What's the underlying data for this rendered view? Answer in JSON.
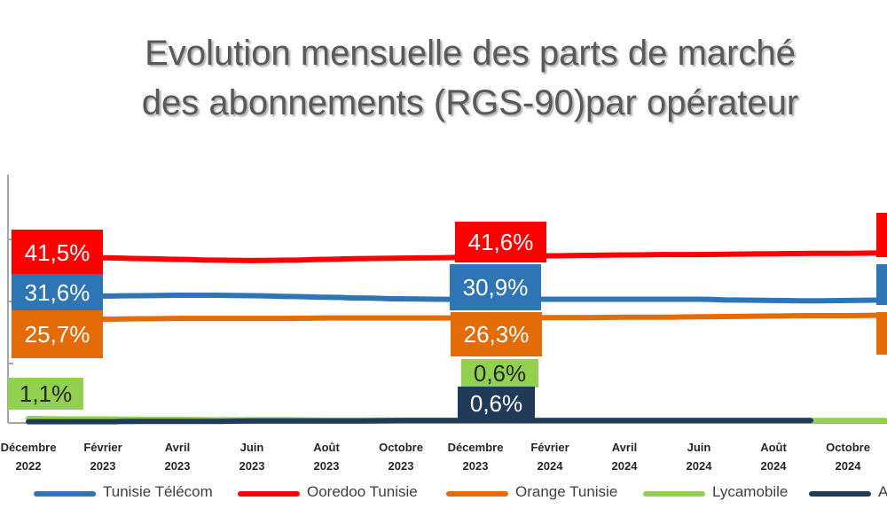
{
  "title": {
    "line1": "Evolution mensuelle des parts de marché",
    "line2": "des abonnements (RGS-90)par opérateur"
  },
  "chart_data": {
    "type": "line",
    "title": "Evolution mensuelle des parts de marché des abonnements (RGS-90)par opérateur",
    "x_tick_labels": [
      [
        "Décembre",
        "2022"
      ],
      [
        "Février",
        "2023"
      ],
      [
        "Avril",
        "2023"
      ],
      [
        "Juin",
        "2023"
      ],
      [
        "Août",
        "2023"
      ],
      [
        "Octobre",
        "2023"
      ],
      [
        "Décembre",
        "2023"
      ],
      [
        "Février",
        "2024"
      ],
      [
        "Avril",
        "2024"
      ],
      [
        "Juin",
        "2024"
      ],
      [
        "Août",
        "2024"
      ],
      [
        "Octobre",
        "2024"
      ]
    ],
    "x": [
      "2022-12",
      "2023-01",
      "2023-02",
      "2023-03",
      "2023-04",
      "2023-05",
      "2023-06",
      "2023-07",
      "2023-08",
      "2023-09",
      "2023-10",
      "2023-11",
      "2023-12",
      "2024-01",
      "2024-02",
      "2024-03",
      "2024-04",
      "2024-05",
      "2024-06",
      "2024-07",
      "2024-08",
      "2024-09",
      "2024-10",
      "2024-11"
    ],
    "ylim": [
      0,
      45
    ],
    "series": [
      {
        "name": "Tunisie Télécom",
        "color": "#2E75B6",
        "values": [
          31.6,
          31.7,
          31.8,
          31.9,
          32.0,
          32.0,
          31.9,
          31.7,
          31.5,
          31.3,
          31.1,
          31.0,
          30.9,
          31.0,
          31.0,
          31.0,
          31.0,
          31.0,
          31.0,
          30.8,
          30.7,
          30.6,
          30.7,
          30.8
        ]
      },
      {
        "name": "Ooredoo Tunisie",
        "color": "#FF0000",
        "values": [
          41.5,
          41.5,
          41.4,
          41.2,
          41.0,
          40.8,
          40.7,
          40.8,
          41.0,
          41.2,
          41.3,
          41.4,
          41.6,
          41.8,
          41.9,
          42.0,
          42.1,
          42.2,
          42.2,
          42.3,
          42.4,
          42.5,
          42.5,
          42.6
        ]
      },
      {
        "name": "Orange Tunisie",
        "color": "#E36C09",
        "values": [
          25.7,
          25.9,
          26.0,
          26.1,
          26.2,
          26.2,
          26.2,
          26.2,
          26.3,
          26.3,
          26.3,
          26.3,
          26.3,
          26.3,
          26.4,
          26.4,
          26.5,
          26.5,
          26.6,
          26.7,
          26.8,
          26.9,
          26.9,
          27.0
        ]
      },
      {
        "name": "Lycamobile",
        "color": "#92D050",
        "values": [
          1.1,
          1.0,
          1.0,
          0.9,
          0.9,
          0.8,
          0.8,
          0.8,
          0.7,
          0.7,
          0.7,
          0.7,
          0.6,
          0.6,
          0.6,
          0.6,
          0.6,
          0.6,
          0.6,
          0.6,
          0.6,
          0.6,
          0.6,
          0.6
        ]
      },
      {
        "name": "A",
        "color": "#1F3B57",
        "values": [
          0.3,
          0.3,
          0.3,
          0.4,
          0.4,
          0.4,
          0.5,
          0.5,
          0.5,
          0.5,
          0.6,
          0.6,
          0.6,
          0.6,
          0.6,
          0.6,
          0.6,
          0.6,
          0.6,
          0.6,
          0.6,
          0.6,
          null,
          null
        ]
      }
    ],
    "data_labels": [
      {
        "series": 1,
        "point": 0,
        "text": "41,5%"
      },
      {
        "series": 0,
        "point": 0,
        "text": "31,6%"
      },
      {
        "series": 2,
        "point": 0,
        "text": "25,7%"
      },
      {
        "series": 3,
        "point": 0,
        "text": "1,1%"
      },
      {
        "series": 1,
        "point": 12,
        "text": "41,6%"
      },
      {
        "series": 0,
        "point": 12,
        "text": "30,9%"
      },
      {
        "series": 2,
        "point": 12,
        "text": "26,3%"
      },
      {
        "series": 3,
        "point": 12,
        "text": "0,6%"
      },
      {
        "series": 4,
        "point": 12,
        "text": "0,6%"
      }
    ],
    "legend": {
      "position": "bottom",
      "items": [
        "Tunisie Télécom",
        "Ooredoo Tunisie",
        "Orange Tunisie",
        "Lycamobile",
        "A"
      ]
    },
    "grid": false
  }
}
